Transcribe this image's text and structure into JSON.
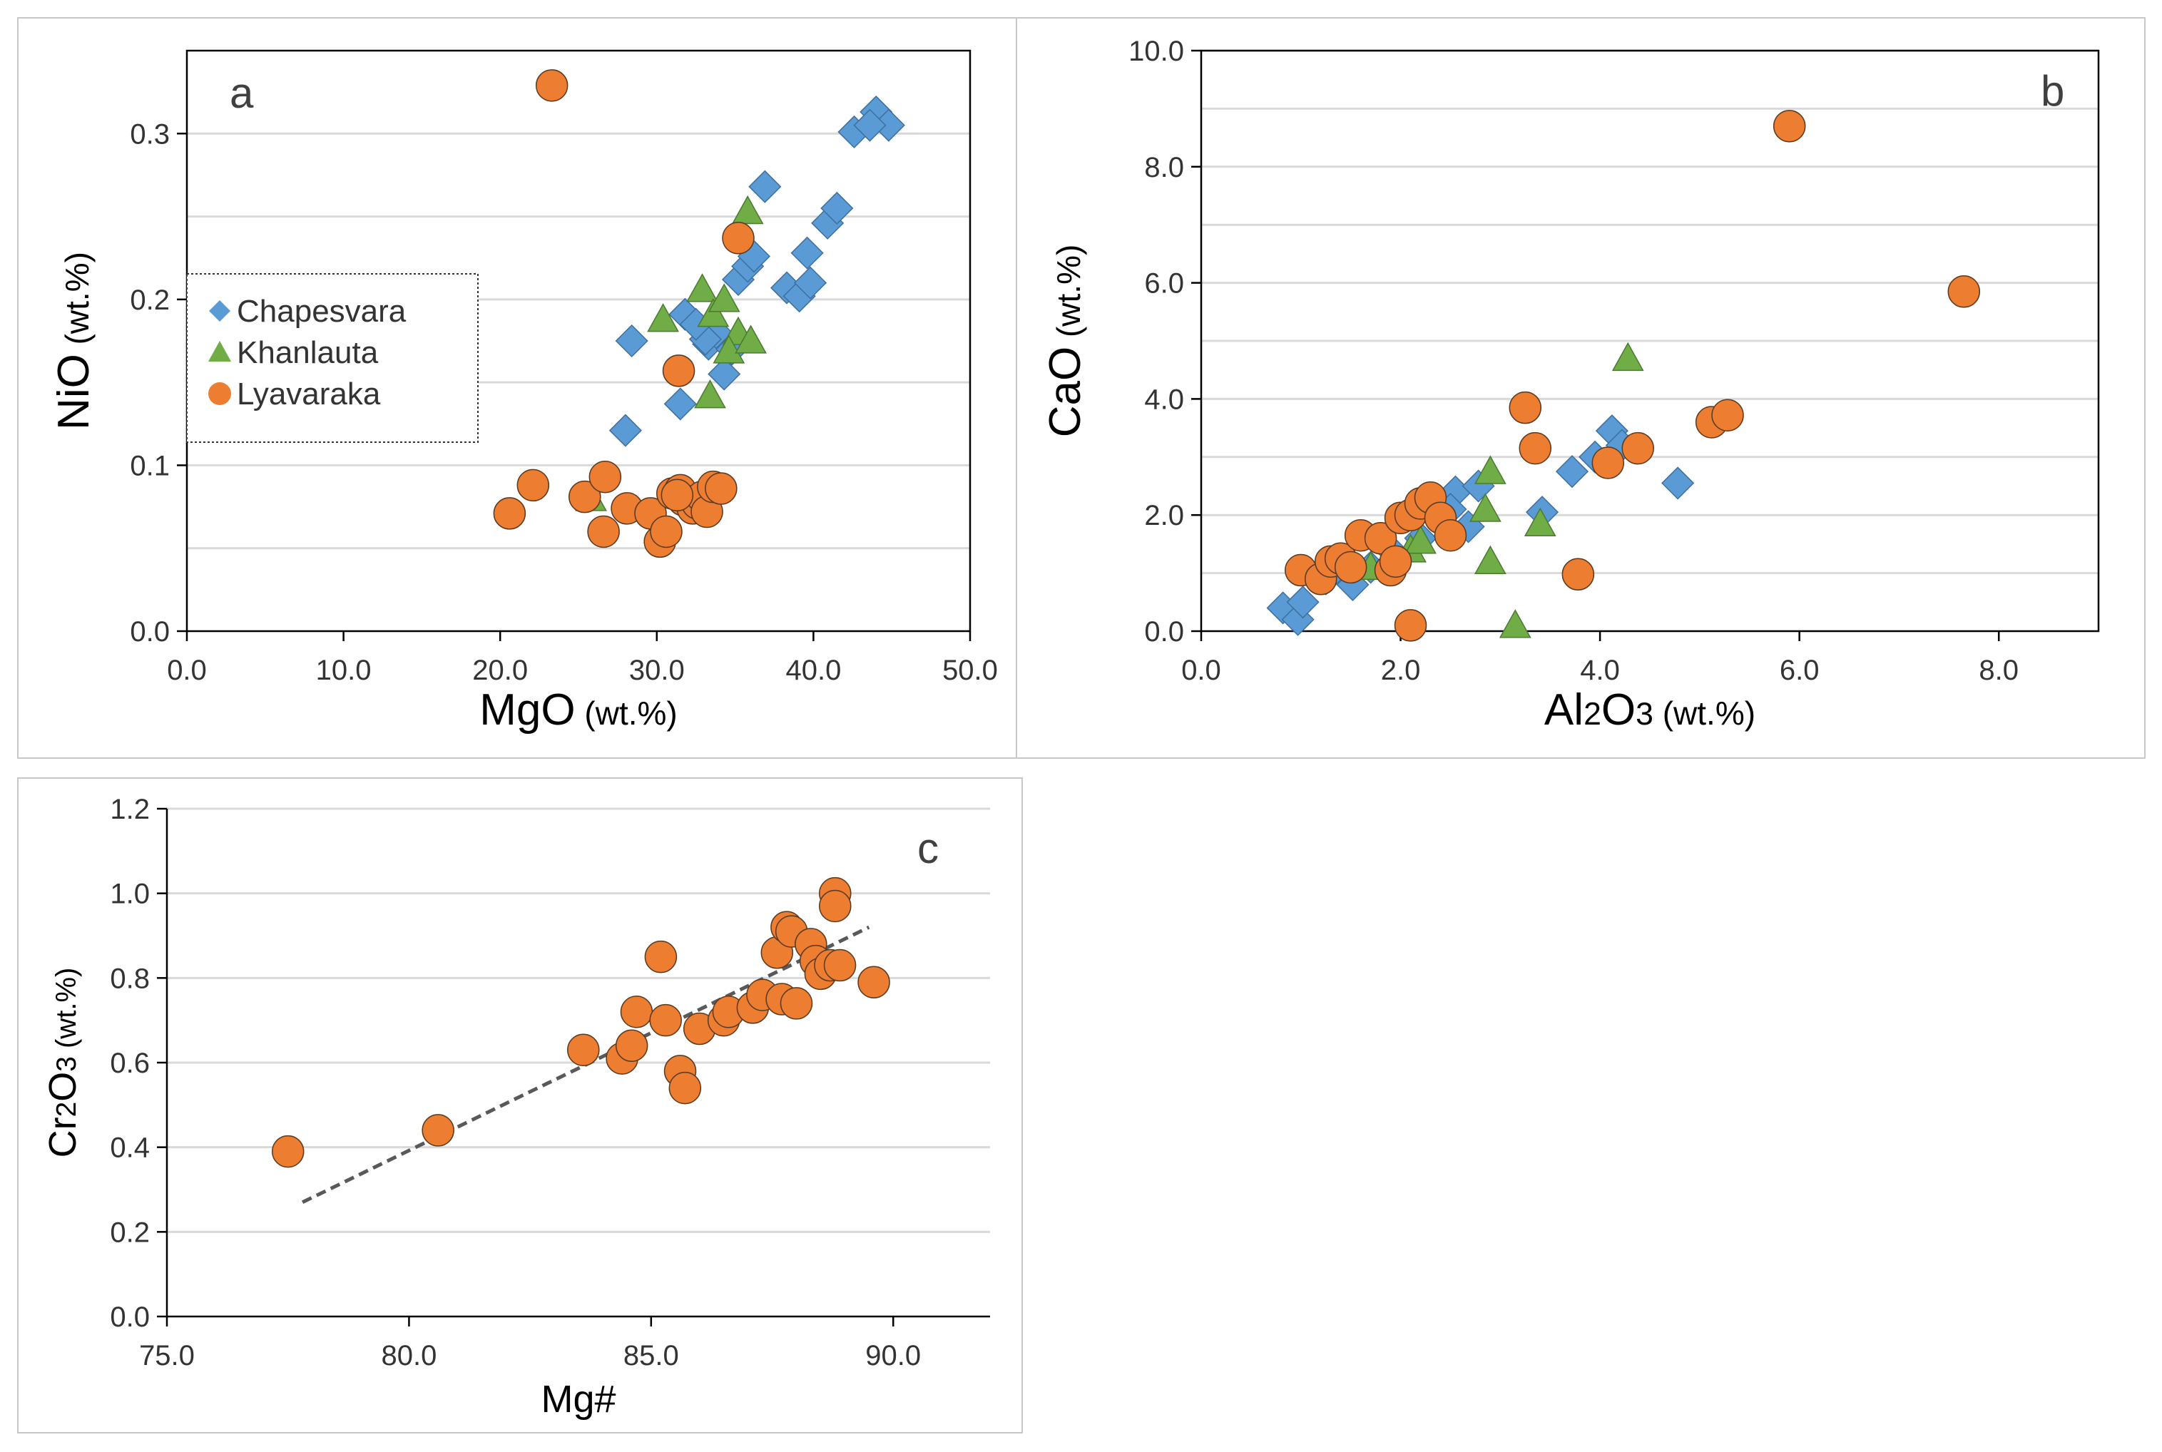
{
  "colors": {
    "chapesvara": "#5b9bd5",
    "khanlauta": "#70ad47",
    "lyavaraka": "#ed7d31",
    "grid": "#d9d9d9",
    "axis": "#000000",
    "trend": "#595959"
  },
  "chart_data": [
    {
      "type": "scatter",
      "panel_label": "a",
      "xlabel_main": "MgO",
      "xlabel_unit": " (wt.%)",
      "ylabel_main": "NiO",
      "ylabel_unit": " (wt.%)",
      "xlim": [
        0,
        50
      ],
      "ylim": [
        0,
        0.35
      ],
      "xticks": [
        0,
        10,
        20,
        30,
        40,
        50
      ],
      "xtick_labels": [
        "0.0",
        "10.0",
        "20.0",
        "30.0",
        "40.0",
        "50.0"
      ],
      "yticks": [
        0,
        0.1,
        0.2,
        0.3
      ],
      "ytick_labels": [
        "0.0",
        "0.1",
        "0.2",
        "0.3"
      ],
      "ygrid": [
        0.05,
        0.1,
        0.15,
        0.2,
        0.25,
        0.3
      ],
      "legend": [
        "Chapesvara",
        "Khanlauta",
        "Lyavaraka"
      ],
      "legend_position": "left-middle",
      "series": [
        {
          "name": "Chapesvara",
          "marker": "diamond",
          "x": [
            28.4,
            28.0,
            31.5,
            31.8,
            33.3,
            33.8,
            34.3,
            35.2,
            35.8,
            36.2,
            36.9,
            38.3,
            39.1,
            39.6,
            39.8,
            40.9,
            41.5,
            42.6,
            44.0,
            44.8,
            43.6,
            34.8,
            33.1,
            32.5
          ],
          "y": [
            0.175,
            0.121,
            0.137,
            0.191,
            0.173,
            0.18,
            0.155,
            0.212,
            0.22,
            0.226,
            0.268,
            0.207,
            0.202,
            0.228,
            0.21,
            0.246,
            0.255,
            0.301,
            0.313,
            0.305,
            0.305,
            0.17,
            0.176,
            0.185
          ]
        },
        {
          "name": "Khanlauta",
          "marker": "triangle",
          "x": [
            25.8,
            30.4,
            32.9,
            33.6,
            34.3,
            35.2,
            35.8,
            33.4,
            34.6,
            36.0
          ],
          "y": [
            0.08,
            0.188,
            0.206,
            0.191,
            0.2,
            0.18,
            0.253,
            0.142,
            0.169,
            0.175
          ]
        },
        {
          "name": "Lyavaraka",
          "marker": "circle",
          "x": [
            23.3,
            20.6,
            22.1,
            25.4,
            26.7,
            26.6,
            28.1,
            29.6,
            30.2,
            30.6,
            31.0,
            31.5,
            31.7,
            32.3,
            32.6,
            32.9,
            33.2,
            33.6,
            34.1,
            35.2,
            31.4,
            31.3
          ],
          "y": [
            0.329,
            0.071,
            0.088,
            0.081,
            0.093,
            0.06,
            0.074,
            0.071,
            0.054,
            0.06,
            0.083,
            0.085,
            0.079,
            0.074,
            0.077,
            0.081,
            0.072,
            0.087,
            0.086,
            0.237,
            0.157,
            0.082
          ]
        }
      ]
    },
    {
      "type": "scatter",
      "panel_label": "b",
      "xlabel_main": "Al2O3",
      "xlabel_unit": " (wt.%)",
      "ylabel_main": "CaO",
      "ylabel_unit": " (wt.%)",
      "xlim": [
        0,
        9
      ],
      "ylim": [
        0,
        10
      ],
      "xticks": [
        0,
        2,
        4,
        6,
        8
      ],
      "xtick_labels": [
        "0.0",
        "2.0",
        "4.0",
        "6.0",
        "8.0"
      ],
      "yticks": [
        0,
        2,
        4,
        6,
        8,
        10
      ],
      "ytick_labels": [
        "0.0",
        "2.0",
        "4.0",
        "6.0",
        "8.0",
        "10.0"
      ],
      "ygrid": [
        1,
        2,
        3,
        4,
        5,
        6,
        7,
        8,
        9,
        10
      ],
      "series": [
        {
          "name": "Chapesvara",
          "marker": "diamond",
          "x": [
            0.82,
            0.97,
            1.02,
            1.25,
            1.52,
            1.7,
            1.9,
            2.2,
            2.55,
            2.68,
            2.78,
            3.42,
            3.72,
            3.95,
            4.12,
            4.22,
            4.78,
            2.5
          ],
          "y": [
            0.4,
            0.2,
            0.5,
            0.9,
            0.8,
            1.1,
            1.4,
            1.6,
            2.4,
            1.8,
            2.5,
            2.05,
            2.75,
            3.0,
            3.45,
            3.2,
            2.55,
            2.1
          ]
        },
        {
          "name": "Khanlauta",
          "marker": "triangle",
          "x": [
            1.7,
            1.9,
            2.1,
            2.2,
            2.85,
            2.9,
            2.9,
            3.15,
            3.4,
            4.28
          ],
          "y": [
            1.1,
            1.3,
            1.4,
            1.55,
            2.1,
            2.75,
            1.2,
            0.1,
            1.85,
            4.7
          ]
        },
        {
          "name": "Lyavaraka",
          "marker": "circle",
          "x": [
            1.0,
            1.2,
            1.3,
            1.4,
            1.5,
            1.6,
            1.8,
            1.9,
            2.0,
            2.1,
            2.2,
            2.3,
            2.4,
            2.5,
            2.1,
            1.95,
            3.25,
            3.35,
            3.78,
            4.08,
            4.38,
            5.12,
            5.28,
            5.9,
            7.65
          ],
          "y": [
            1.05,
            0.9,
            1.2,
            1.25,
            1.1,
            1.65,
            1.6,
            1.05,
            1.95,
            2.0,
            2.2,
            2.3,
            1.95,
            1.65,
            0.1,
            1.2,
            3.85,
            3.15,
            0.98,
            2.9,
            3.15,
            3.6,
            3.72,
            8.7,
            5.85
          ]
        }
      ]
    },
    {
      "type": "scatter",
      "panel_label": "c",
      "xlabel_main": "Mg#",
      "xlabel_unit": "",
      "ylabel_main": "Cr2O3",
      "ylabel_unit": " (wt.%)",
      "xlim": [
        75,
        92
      ],
      "ylim": [
        0,
        1.2
      ],
      "xticks": [
        75,
        80,
        85,
        90
      ],
      "xtick_labels": [
        "75.0",
        "80.0",
        "85.0",
        "90.0"
      ],
      "yticks": [
        0,
        0.2,
        0.4,
        0.6,
        0.8,
        1.0,
        1.2
      ],
      "ytick_labels": [
        "0.0",
        "0.2",
        "0.4",
        "0.6",
        "0.8",
        "1.0",
        "1.2"
      ],
      "ygrid": [
        0.2,
        0.4,
        0.6,
        0.8,
        1.0,
        1.2
      ],
      "trendline": {
        "x": [
          77.8,
          89.5
        ],
        "y": [
          0.27,
          0.92
        ]
      },
      "series": [
        {
          "name": "Lyavaraka",
          "marker": "circle",
          "x": [
            77.5,
            80.6,
            83.6,
            84.4,
            84.6,
            84.7,
            85.2,
            85.3,
            85.6,
            85.7,
            86.0,
            86.5,
            86.6,
            87.1,
            87.3,
            87.6,
            87.7,
            87.8,
            87.9,
            88.0,
            88.3,
            88.4,
            88.5,
            88.7,
            88.8,
            88.8,
            88.9,
            89.6
          ],
          "y": [
            0.39,
            0.44,
            0.63,
            0.61,
            0.64,
            0.72,
            0.85,
            0.7,
            0.58,
            0.54,
            0.68,
            0.7,
            0.72,
            0.73,
            0.76,
            0.86,
            0.75,
            0.92,
            0.91,
            0.74,
            0.88,
            0.84,
            0.81,
            0.83,
            1.0,
            0.97,
            0.83,
            0.79
          ]
        }
      ]
    }
  ]
}
